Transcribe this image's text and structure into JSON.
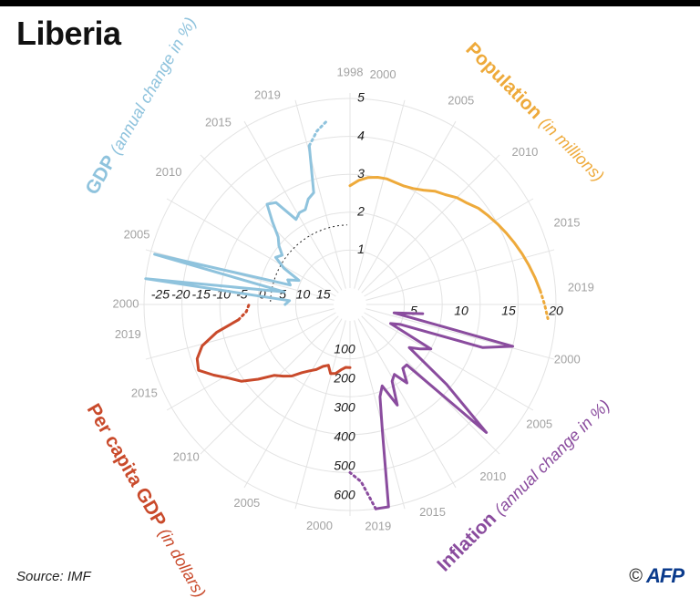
{
  "title": "Liberia",
  "source": "Source: IMF",
  "credit": {
    "copyright": "©",
    "agency": "AFP"
  },
  "colors": {
    "gdp": "#eeaa3b",
    "population": "#8fc3dd",
    "per_capita": "#c94a2b",
    "inflation": "#8a4c9e"
  },
  "chart_data": [
    {
      "type": "line",
      "panel": "gdp",
      "title": "GDP",
      "subtitle": "(annual change in %)",
      "year_labels": [
        "2000",
        "2005",
        "2010",
        "2015",
        "2019"
      ],
      "tick_labels": [
        "15",
        "10",
        "5",
        "0",
        "-5",
        "-10",
        "-15",
        "-20",
        "-25"
      ],
      "ylim": [
        15,
        -30
      ],
      "x": [
        1998,
        1999,
        2000,
        2001,
        2002,
        2003,
        2004,
        2005,
        2006,
        2007,
        2008,
        2009,
        2010,
        2011,
        2012,
        2013,
        2014,
        2015,
        2016,
        2017,
        2018,
        2019,
        2020,
        2021
      ],
      "values": [
        3.5,
        4.5,
        -30,
        3,
        -29,
        4,
        3,
        5.5,
        1,
        -2,
        -1,
        -3,
        -4.5,
        -8,
        -12,
        -11,
        -5,
        -6,
        -6,
        -8,
        -9,
        -20,
        -23,
        -25
      ],
      "projected_from": 2019
    },
    {
      "type": "line",
      "panel": "population",
      "title": "Population",
      "subtitle": "(in millions)",
      "year_labels": [
        "1998",
        "2000",
        "2005",
        "2010",
        "2015",
        "2019"
      ],
      "tick_labels": [
        "1",
        "2",
        "3",
        "4",
        "5"
      ],
      "ylim": [
        0,
        5
      ],
      "x": [
        1998,
        1999,
        2000,
        2001,
        2002,
        2003,
        2004,
        2005,
        2006,
        2007,
        2008,
        2009,
        2010,
        2011,
        2012,
        2013,
        2014,
        2015,
        2016,
        2017,
        2018,
        2019,
        2020,
        2021
      ],
      "values": [
        2.7,
        2.85,
        2.95,
        3.0,
        3.02,
        3.0,
        3.0,
        3.05,
        3.15,
        3.3,
        3.4,
        3.55,
        3.65,
        3.8,
        3.9,
        4.0,
        4.1,
        4.2,
        4.3,
        4.4,
        4.5,
        4.6,
        4.7,
        4.8
      ],
      "projected_from": 2019
    },
    {
      "type": "line",
      "panel": "per_capita_gdp",
      "title": "Per capita GDP",
      "subtitle": "(in dollars)",
      "year_labels": [
        "2000",
        "2005",
        "2010",
        "2015",
        "2019"
      ],
      "tick_labels": [
        "100",
        "200",
        "300",
        "400",
        "500",
        "600"
      ],
      "ylim": [
        0,
        650
      ],
      "x": [
        1998,
        1999,
        2000,
        2001,
        2002,
        2003,
        2004,
        2005,
        2006,
        2007,
        2008,
        2009,
        2010,
        2011,
        2012,
        2013,
        2014,
        2015,
        2016,
        2017,
        2018,
        2019,
        2020,
        2021
      ],
      "values": [
        160,
        160,
        170,
        185,
        190,
        165,
        175,
        195,
        210,
        230,
        260,
        280,
        300,
        350,
        400,
        430,
        470,
        510,
        500,
        470,
        410,
        330,
        300,
        290
      ],
      "projected_from": 2019
    },
    {
      "type": "line",
      "panel": "inflation",
      "title": "Inflation",
      "subtitle": "(annual change in %)",
      "year_labels": [
        "2000",
        "2005",
        "2010",
        "2015",
        "2019"
      ],
      "tick_labels": [
        "5",
        "10",
        "15",
        "20"
      ],
      "ylim": [
        0,
        20
      ],
      "x": [
        1998,
        1999,
        2000,
        2001,
        2002,
        2003,
        2004,
        2005,
        2006,
        2007,
        2008,
        2009,
        2010,
        2011,
        2012,
        2013,
        2014,
        2015,
        2016,
        2017,
        2018,
        2019,
        2020,
        2021
      ],
      "values": [
        6,
        3,
        16,
        13,
        4,
        3,
        8,
        7,
        6,
        11.5,
        18,
        7,
        7,
        8.5,
        7,
        7.5,
        10,
        7.5,
        8.5,
        12,
        21,
        20,
        17,
        16
      ],
      "projected_from": 2019
    }
  ]
}
